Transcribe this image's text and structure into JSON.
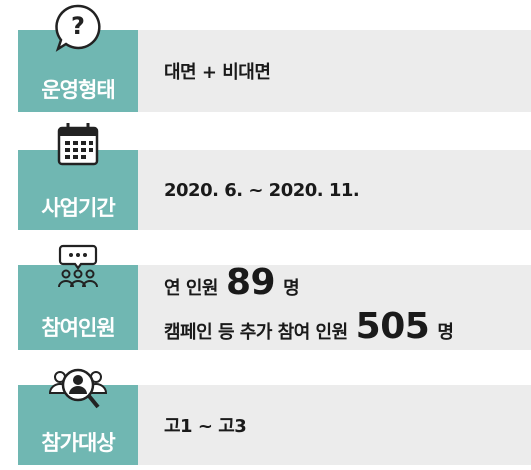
{
  "rows": [
    {
      "label": "운영형태",
      "content": "대면 + 비대면"
    },
    {
      "label": "사업기간",
      "content": "2020. 6. ~ 2020. 11."
    },
    {
      "label": "참여인원",
      "lines": [
        {
          "text": "연 인원",
          "number": 89,
          "unit": "명"
        },
        {
          "text": "캠페인 등 추가 참여 인원",
          "number": 505,
          "unit": "명"
        }
      ]
    },
    {
      "label": "참가대상",
      "content": "고1 ~ 고3"
    }
  ]
}
